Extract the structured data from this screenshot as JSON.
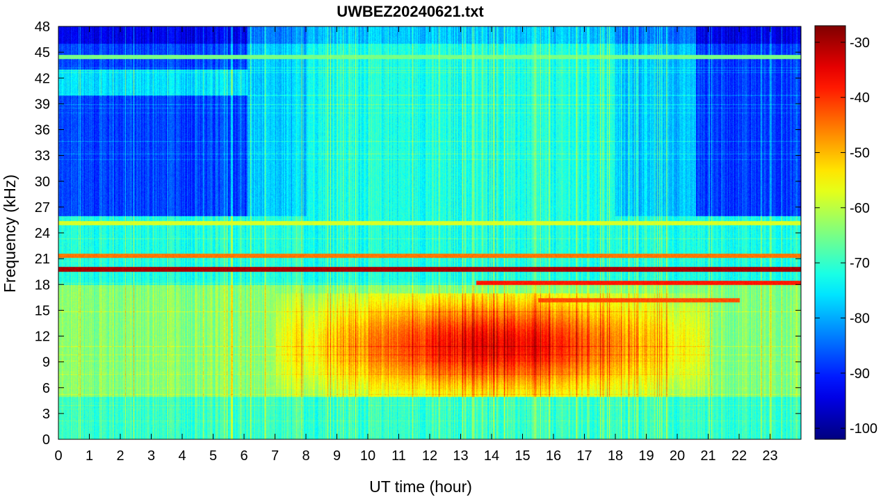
{
  "chart_data": {
    "type": "heatmap",
    "title": "UWBEZ20240621.txt",
    "xlabel": "UT time (hour)",
    "ylabel": "Frequency (kHz)",
    "xlim": [
      0,
      24
    ],
    "ylim": [
      0,
      48
    ],
    "x_ticks": [
      0,
      1,
      2,
      3,
      4,
      5,
      6,
      7,
      8,
      9,
      10,
      11,
      12,
      13,
      14,
      15,
      16,
      17,
      18,
      19,
      20,
      21,
      22,
      23
    ],
    "y_ticks": [
      0,
      3,
      6,
      9,
      12,
      15,
      18,
      21,
      24,
      27,
      30,
      33,
      36,
      39,
      42,
      45,
      48
    ],
    "colorbar": {
      "colormap": "jet",
      "clim": [
        -102,
        -27
      ],
      "ticks": [
        -30,
        -40,
        -50,
        -60,
        -70,
        -80,
        -90,
        -100
      ],
      "colors": [
        "#00008f",
        "#0000ff",
        "#00ffff",
        "#ffff00",
        "#ff0000",
        "#800000"
      ]
    },
    "features": {
      "background_level_db": -72,
      "quiet_upper_band_db": -88,
      "quiet_upper_periods_hours": [
        [
          0,
          6.1
        ],
        [
          20.6,
          24
        ]
      ],
      "daytime_enhancement": {
        "time_hours": [
          7,
          21
        ],
        "freq_khz": [
          5,
          17
        ],
        "peak_db": -46
      },
      "transmitter_lines_khz": [
        {
          "freq": 19.8,
          "level_db": -30,
          "time_hours": [
            0,
            24
          ]
        },
        {
          "freq": 21.4,
          "level_db": -45,
          "time_hours": [
            0,
            24
          ]
        },
        {
          "freq": 18.2,
          "level_db": -38,
          "time_hours": [
            13.5,
            24
          ]
        },
        {
          "freq": 25.2,
          "level_db": -58,
          "time_hours": [
            0,
            24
          ]
        },
        {
          "freq": 44.5,
          "level_db": -65,
          "time_hours": [
            0,
            24
          ]
        },
        {
          "freq": 16.2,
          "level_db": -42,
          "time_hours": [
            15.5,
            22
          ]
        }
      ]
    }
  }
}
